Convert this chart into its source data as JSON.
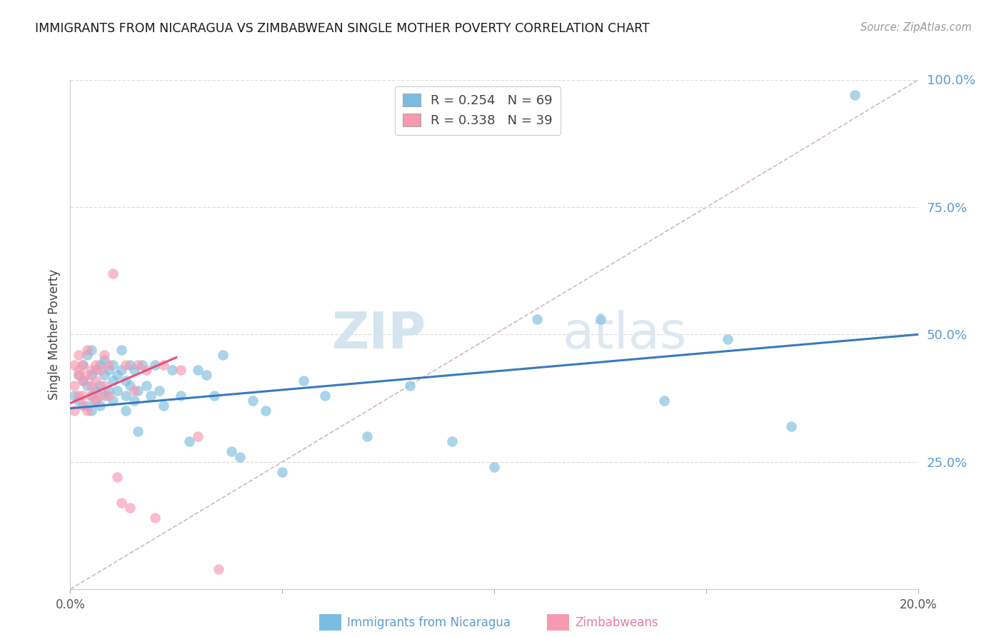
{
  "title": "IMMIGRANTS FROM NICARAGUA VS ZIMBABWEAN SINGLE MOTHER POVERTY CORRELATION CHART",
  "source": "Source: ZipAtlas.com",
  "ylabel_label": "Single Mother Poverty",
  "legend_label1": "Immigrants from Nicaragua",
  "legend_label2": "Zimbabweans",
  "R1": 0.254,
  "N1": 69,
  "R2": 0.338,
  "N2": 39,
  "xlim": [
    0.0,
    0.2
  ],
  "ylim": [
    0.0,
    1.0
  ],
  "xtick_vals": [
    0.0,
    0.05,
    0.1,
    0.15,
    0.2
  ],
  "xtick_labels": [
    "0.0%",
    "",
    "",
    "",
    "20.0%"
  ],
  "ytick_vals": [
    0.0,
    0.25,
    0.5,
    0.75,
    1.0
  ],
  "ytick_labels": [
    "",
    "25.0%",
    "50.0%",
    "75.0%",
    "100.0%"
  ],
  "color_blue": "#7bbde0",
  "color_pink": "#f799b0",
  "color_blue_line": "#3a7abf",
  "color_pink_line": "#e8507a",
  "color_diag_line": "#ccb0c0",
  "background": "#ffffff",
  "grid_color": "#dddddd",
  "blue_scatter_x": [
    0.001,
    0.002,
    0.002,
    0.003,
    0.003,
    0.004,
    0.004,
    0.004,
    0.005,
    0.005,
    0.005,
    0.005,
    0.006,
    0.006,
    0.006,
    0.007,
    0.007,
    0.007,
    0.008,
    0.008,
    0.008,
    0.009,
    0.009,
    0.01,
    0.01,
    0.01,
    0.011,
    0.011,
    0.012,
    0.012,
    0.013,
    0.013,
    0.013,
    0.014,
    0.014,
    0.015,
    0.015,
    0.016,
    0.016,
    0.017,
    0.018,
    0.019,
    0.02,
    0.021,
    0.022,
    0.024,
    0.026,
    0.028,
    0.03,
    0.032,
    0.034,
    0.036,
    0.038,
    0.04,
    0.043,
    0.046,
    0.05,
    0.055,
    0.06,
    0.07,
    0.08,
    0.09,
    0.1,
    0.11,
    0.125,
    0.14,
    0.155,
    0.17,
    0.185
  ],
  "blue_scatter_y": [
    0.38,
    0.42,
    0.37,
    0.41,
    0.44,
    0.36,
    0.4,
    0.46,
    0.38,
    0.42,
    0.35,
    0.47,
    0.39,
    0.43,
    0.37,
    0.4,
    0.44,
    0.36,
    0.42,
    0.38,
    0.45,
    0.39,
    0.43,
    0.41,
    0.37,
    0.44,
    0.42,
    0.39,
    0.43,
    0.47,
    0.38,
    0.41,
    0.35,
    0.44,
    0.4,
    0.37,
    0.43,
    0.39,
    0.31,
    0.44,
    0.4,
    0.38,
    0.44,
    0.39,
    0.36,
    0.43,
    0.38,
    0.29,
    0.43,
    0.42,
    0.38,
    0.46,
    0.27,
    0.26,
    0.37,
    0.35,
    0.23,
    0.41,
    0.38,
    0.3,
    0.4,
    0.29,
    0.24,
    0.53,
    0.53,
    0.37,
    0.49,
    0.32,
    0.97
  ],
  "pink_scatter_x": [
    0.001,
    0.001,
    0.001,
    0.002,
    0.002,
    0.002,
    0.002,
    0.003,
    0.003,
    0.003,
    0.003,
    0.004,
    0.004,
    0.004,
    0.005,
    0.005,
    0.005,
    0.006,
    0.006,
    0.006,
    0.007,
    0.007,
    0.008,
    0.008,
    0.009,
    0.009,
    0.01,
    0.011,
    0.012,
    0.013,
    0.014,
    0.015,
    0.016,
    0.018,
    0.02,
    0.022,
    0.026,
    0.03,
    0.035
  ],
  "pink_scatter_y": [
    0.35,
    0.4,
    0.44,
    0.42,
    0.38,
    0.46,
    0.43,
    0.36,
    0.41,
    0.44,
    0.38,
    0.42,
    0.47,
    0.35,
    0.4,
    0.43,
    0.38,
    0.44,
    0.41,
    0.37,
    0.43,
    0.38,
    0.46,
    0.4,
    0.44,
    0.38,
    0.62,
    0.22,
    0.17,
    0.44,
    0.16,
    0.39,
    0.44,
    0.43,
    0.14,
    0.44,
    0.43,
    0.3,
    0.04
  ],
  "blue_line_x": [
    0.0,
    0.2
  ],
  "blue_line_y": [
    0.355,
    0.5
  ],
  "pink_line_x": [
    0.0,
    0.025
  ],
  "pink_line_y": [
    0.365,
    0.455
  ],
  "diag_line_x": [
    0.0,
    0.2
  ],
  "diag_line_y": [
    0.0,
    1.0
  ],
  "watermark_text": "ZIPatlas",
  "watermark_zip": "ZIP",
  "watermark_atlas": "atlas"
}
